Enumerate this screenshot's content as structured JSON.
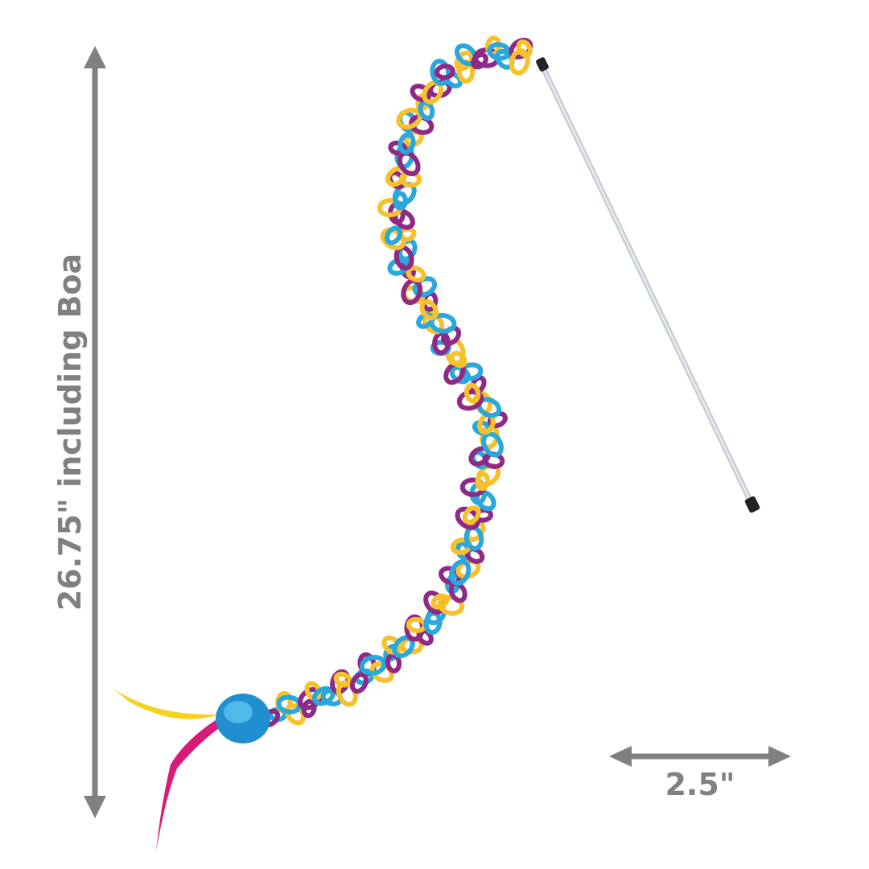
{
  "dimensions": {
    "height_label": "26.75\" including Boa",
    "width_label": "2.5\""
  },
  "colors": {
    "dimension_gray": "#808080",
    "loop_blue": "#2aa7dc",
    "loop_yellow": "#f7c12c",
    "loop_purple": "#8e2a86",
    "ball_blue": "#1f8fd0",
    "feather_yellow": "#f6d21e",
    "feather_pink": "#d81b78",
    "wand_clear": "#c8ccd4",
    "wand_cap": "#222222"
  }
}
